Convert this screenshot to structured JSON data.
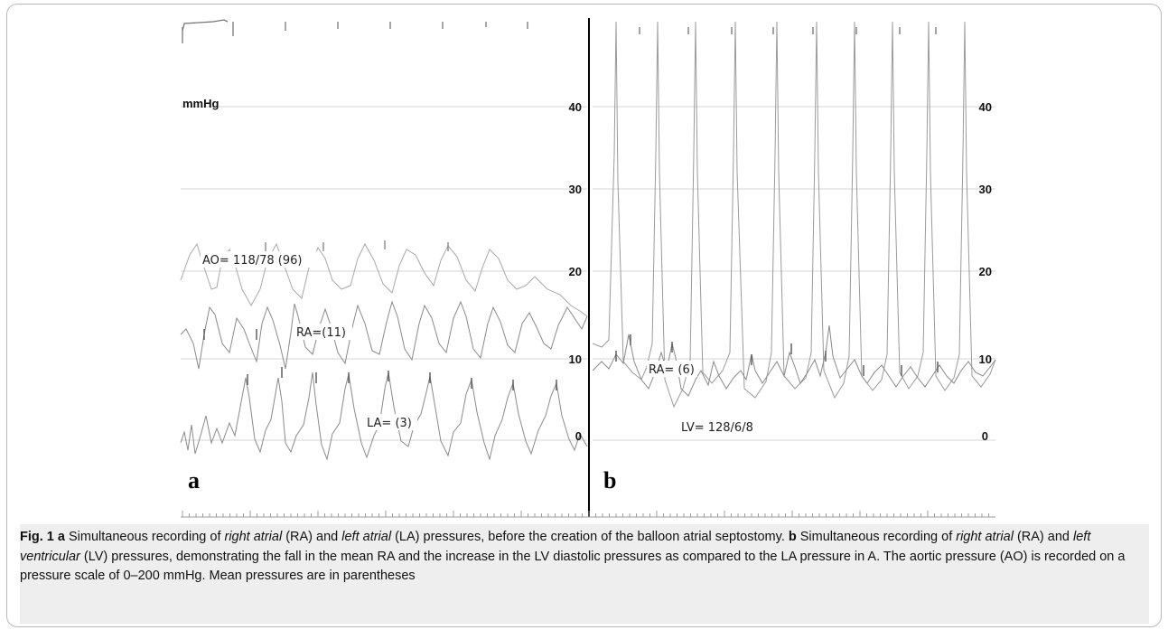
{
  "figure": {
    "unit_label": "mmHg",
    "panel_a": {
      "letter": "a",
      "y_ticks": [
        "40",
        "30",
        "20",
        "10",
        "0"
      ],
      "labels": {
        "ao": "AO= 118/78 (96)",
        "ra": "RA=(11)",
        "la": "LA= (3)"
      }
    },
    "panel_b": {
      "letter": "b",
      "y_ticks": [
        "40",
        "30",
        "20",
        "10",
        "0"
      ],
      "labels": {
        "ra": "RA= (6)",
        "lv": "LV= 128/6/8"
      }
    },
    "colors": {
      "trace": "#8a8a8a",
      "grid": "#d6d6d6",
      "divider": "#000000"
    }
  },
  "caption": {
    "fig_label": "Fig. 1",
    "a_letter": "a",
    "a_pre1": " Simultaneous recording of ",
    "a_it1": "right atrial",
    "a_mid1": " (RA) and ",
    "a_it2": "left atrial",
    "a_post": " (LA) pressures, before the creation of the balloon atrial septostomy. ",
    "b_letter": "b",
    "b_pre1": " Simultaneous recording of ",
    "b_it1": "right atrial",
    "b_mid1": " (RA) and ",
    "b_it2": "left ventricular",
    "b_post": " (LV) pressures, demonstrating the fall in the mean RA and the increase in the LV diastolic pressures as compared to the LA pressure in A. The aortic pressure (AO) is recorded on a pressure scale of 0–200 mmHg. Mean pressures are in parentheses"
  }
}
